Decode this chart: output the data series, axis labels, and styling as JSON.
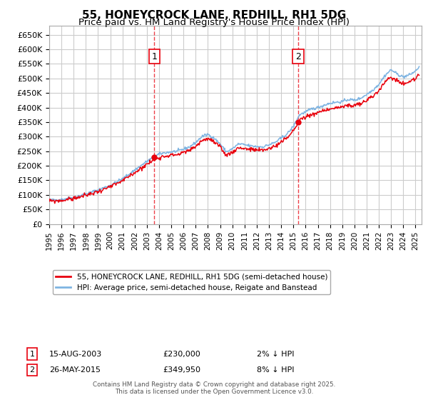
{
  "title": "55, HONEYCROCK LANE, REDHILL, RH1 5DG",
  "subtitle": "Price paid vs. HM Land Registry's House Price Index (HPI)",
  "ylabel_ticks": [
    "£0",
    "£50K",
    "£100K",
    "£150K",
    "£200K",
    "£250K",
    "£300K",
    "£350K",
    "£400K",
    "£450K",
    "£500K",
    "£550K",
    "£600K",
    "£650K"
  ],
  "ytick_values": [
    0,
    50000,
    100000,
    150000,
    200000,
    250000,
    300000,
    350000,
    400000,
    450000,
    500000,
    550000,
    600000,
    650000
  ],
  "ylim": [
    0,
    680000
  ],
  "xlim_start": 1995.0,
  "xlim_end": 2025.5,
  "sale1_x": 2003.617,
  "sale1_y": 230000,
  "sale2_x": 2015.397,
  "sale2_y": 349950,
  "hpi_color": "#7eb4e2",
  "price_color": "#e8000d",
  "grid_color": "#cccccc",
  "background_color": "#ffffff",
  "legend_label_price": "55, HONEYCROCK LANE, REDHILL, RH1 5DG (semi-detached house)",
  "legend_label_hpi": "HPI: Average price, semi-detached house, Reigate and Banstead",
  "annotation1_date": "15-AUG-2003",
  "annotation1_price": "£230,000",
  "annotation1_note": "2% ↓ HPI",
  "annotation2_date": "26-MAY-2015",
  "annotation2_price": "£349,950",
  "annotation2_note": "8% ↓ HPI",
  "footer": "Contains HM Land Registry data © Crown copyright and database right 2025.\nThis data is licensed under the Open Government Licence v3.0.",
  "title_fontsize": 11,
  "subtitle_fontsize": 9.5,
  "hpi_anchors_x": [
    1995.0,
    1995.5,
    1996.0,
    1996.5,
    1997.0,
    1997.5,
    1998.0,
    1998.5,
    1999.0,
    1999.5,
    2000.0,
    2000.5,
    2001.0,
    2001.5,
    2002.0,
    2002.5,
    2003.0,
    2003.5,
    2004.0,
    2004.5,
    2005.0,
    2005.5,
    2006.0,
    2006.5,
    2007.0,
    2007.5,
    2008.0,
    2008.5,
    2009.0,
    2009.5,
    2010.0,
    2010.5,
    2011.0,
    2011.5,
    2012.0,
    2012.5,
    2013.0,
    2013.5,
    2014.0,
    2014.5,
    2015.0,
    2015.5,
    2016.0,
    2016.5,
    2017.0,
    2017.5,
    2018.0,
    2018.5,
    2019.0,
    2019.5,
    2020.0,
    2020.5,
    2021.0,
    2021.5,
    2022.0,
    2022.5,
    2023.0,
    2023.5,
    2024.0,
    2024.5,
    2025.0,
    2025.3
  ],
  "hpi_anchors_y": [
    82000,
    83000,
    84000,
    88000,
    92000,
    97000,
    103000,
    110000,
    117000,
    125000,
    133000,
    144000,
    155000,
    170000,
    185000,
    200000,
    215000,
    228000,
    240000,
    245000,
    248000,
    250000,
    257000,
    265000,
    280000,
    300000,
    308000,
    295000,
    275000,
    248000,
    258000,
    275000,
    272000,
    268000,
    266000,
    265000,
    272000,
    280000,
    295000,
    310000,
    335000,
    375000,
    385000,
    395000,
    400000,
    408000,
    415000,
    418000,
    420000,
    428000,
    425000,
    432000,
    445000,
    460000,
    480000,
    510000,
    530000,
    515000,
    505000,
    512000,
    525000,
    540000
  ]
}
